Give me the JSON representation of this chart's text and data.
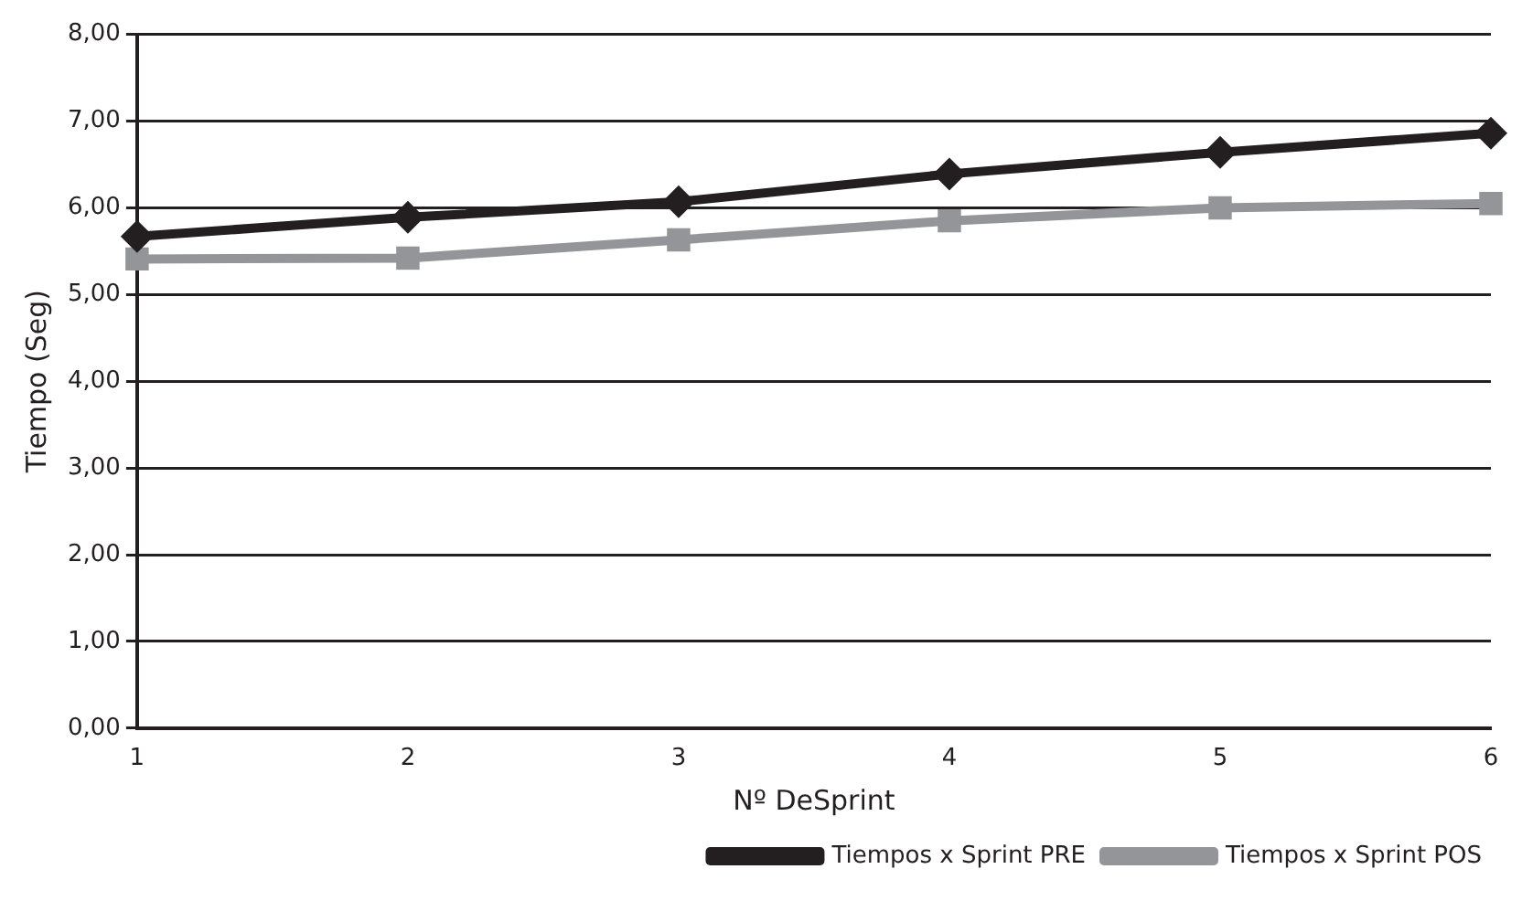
{
  "chart_data": {
    "type": "line",
    "xlabel": "Nº DeSprint",
    "ylabel": "Tiempo (Seg)",
    "categories": [
      "1",
      "2",
      "3",
      "4",
      "5",
      "6"
    ],
    "series": [
      {
        "name": "Tiempos x Sprint PRE",
        "color": "#231f20",
        "marker": "diamond",
        "values": [
          5.67,
          5.89,
          6.07,
          6.39,
          6.64,
          6.86
        ]
      },
      {
        "name": "Tiempos x Sprint POS",
        "color": "#939598",
        "marker": "square",
        "values": [
          5.41,
          5.42,
          5.63,
          5.85,
          6.0,
          6.05
        ]
      }
    ],
    "ylim": [
      0,
      8
    ],
    "yticks": [
      {
        "value": 0,
        "label": "0,00"
      },
      {
        "value": 1,
        "label": "1,00"
      },
      {
        "value": 2,
        "label": "2,00"
      },
      {
        "value": 3,
        "label": "3,00"
      },
      {
        "value": 4,
        "label": "4,00"
      },
      {
        "value": 5,
        "label": "5,00"
      },
      {
        "value": 6,
        "label": "6,00"
      },
      {
        "value": 7,
        "label": "7,00"
      },
      {
        "value": 8,
        "label": "8,00"
      }
    ],
    "grid": "y",
    "legend": "bottom right",
    "line_style": "solid"
  }
}
